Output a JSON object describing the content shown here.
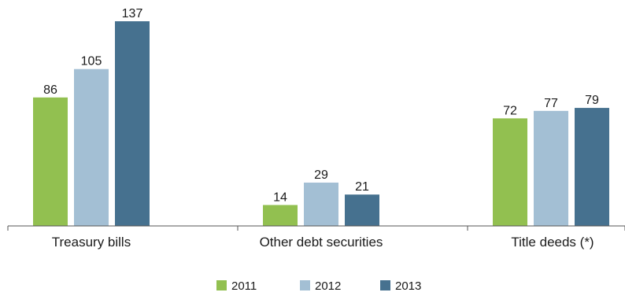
{
  "chart_data": {
    "type": "bar",
    "categories": [
      "Treasury bills",
      "Other debt securities",
      "Title deeds (*)"
    ],
    "series": [
      {
        "name": "2011",
        "color": "#92c050",
        "values": [
          86,
          14,
          72
        ]
      },
      {
        "name": "2012",
        "color": "#a3bfd4",
        "values": [
          105,
          29,
          77
        ]
      },
      {
        "name": "2013",
        "color": "#46718f",
        "values": [
          137,
          21,
          79
        ]
      }
    ],
    "ylim": [
      0,
      137
    ],
    "grid": false,
    "legend": "bottom"
  }
}
